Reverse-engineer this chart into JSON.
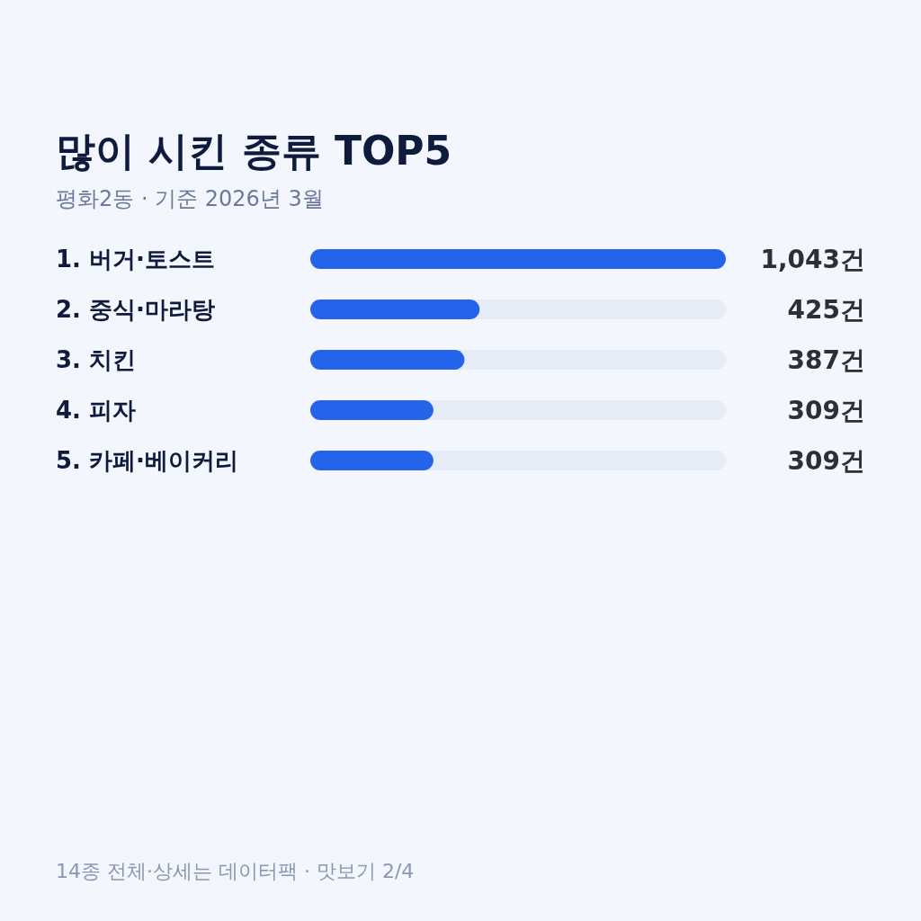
{
  "chart_data": {
    "type": "bar",
    "orientation": "horizontal",
    "title": "많이 시킨 종류 TOP5",
    "subtitle": "평화2동 · 기준 2026년 3월",
    "categories": [
      "1. 버거·토스트",
      "2. 중식·마라탕",
      "3. 치킨",
      "4. 피자",
      "5. 카페·베이커리"
    ],
    "values": [
      1043,
      425,
      387,
      309,
      309
    ],
    "value_labels": [
      "1,043건",
      "425건",
      "387건",
      "309건",
      "309건"
    ],
    "color": "#2563eb",
    "annotations": [
      "14종 전체·상세는 데이터팩 · 맛보기 2/4"
    ]
  }
}
